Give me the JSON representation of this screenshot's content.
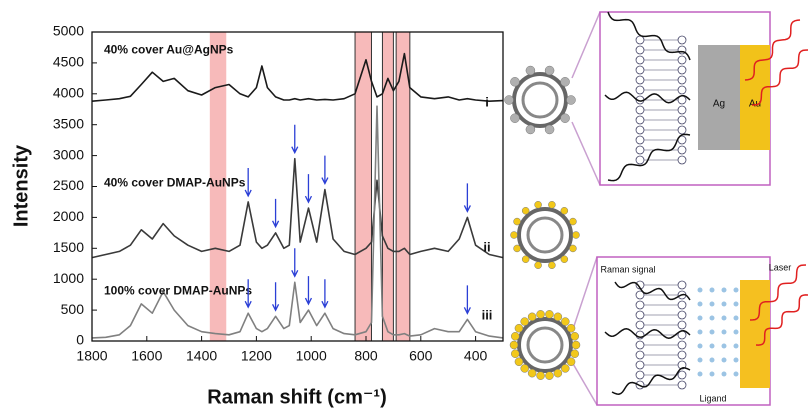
{
  "chart_data": {
    "type": "line",
    "ylabel": "Intensity",
    "xlabel": "Raman shift (cm⁻¹)",
    "xlim": [
      1800,
      300
    ],
    "xticks": [
      1800,
      1600,
      1400,
      1200,
      1000,
      800,
      600,
      400
    ],
    "ylim": [
      0,
      5000
    ],
    "yticks": [
      0,
      500,
      1000,
      1500,
      2000,
      2500,
      3000,
      3500,
      4000,
      4500,
      5000
    ],
    "x": [
      1800,
      1750,
      1700,
      1660,
      1620,
      1580,
      1540,
      1500,
      1450,
      1400,
      1350,
      1300,
      1260,
      1230,
      1200,
      1180,
      1160,
      1130,
      1100,
      1080,
      1060,
      1040,
      1010,
      980,
      950,
      920,
      880,
      840,
      800,
      780,
      760,
      740,
      720,
      700,
      680,
      660,
      640,
      600,
      550,
      500,
      460,
      430,
      400,
      350,
      300
    ],
    "series": [
      {
        "name": "40% cover Au@AgNPs",
        "tag": "i",
        "color": "#1a1a1a",
        "values": [
          3880,
          3900,
          3920,
          3960,
          4150,
          4350,
          4200,
          4250,
          4050,
          3980,
          4100,
          4150,
          4000,
          3950,
          4100,
          4450,
          4100,
          3950,
          3900,
          3900,
          3920,
          3900,
          3920,
          3900,
          3910,
          3900,
          3920,
          4000,
          4550,
          4200,
          3950,
          4000,
          4250,
          4050,
          4200,
          4650,
          4100,
          3950,
          3920,
          3950,
          3900,
          3920,
          3900,
          3880,
          3890
        ]
      },
      {
        "name": "40% cover DMAP-AuNPs",
        "tag": "ii",
        "color": "#3a3a3a",
        "values": [
          1350,
          1400,
          1450,
          1550,
          1800,
          1650,
          1900,
          1700,
          1550,
          1450,
          1500,
          1450,
          1550,
          2250,
          1600,
          1500,
          1550,
          1750,
          1500,
          1550,
          2950,
          1600,
          2150,
          1600,
          2450,
          1650,
          1450,
          1400,
          1500,
          1600,
          2600,
          1700,
          1500,
          1450,
          1450,
          1500,
          1400,
          1450,
          1500,
          1450,
          1650,
          2000,
          1550,
          1400,
          1350
        ]
      },
      {
        "name": "100% cover DMAP-AuNPs",
        "tag": "iii",
        "color": "#808080",
        "values": [
          50,
          60,
          100,
          250,
          600,
          450,
          800,
          500,
          250,
          150,
          120,
          100,
          150,
          450,
          200,
          150,
          200,
          400,
          200,
          250,
          950,
          300,
          500,
          250,
          450,
          200,
          120,
          100,
          150,
          300,
          3800,
          400,
          150,
          100,
          100,
          120,
          80,
          100,
          200,
          150,
          150,
          350,
          150,
          80,
          50
        ]
      }
    ],
    "highlight_bands": [
      [
        1370,
        1310
      ],
      [
        840,
        780
      ],
      [
        740,
        700
      ],
      [
        690,
        640
      ]
    ],
    "highlight_color": "#f4a3a3",
    "marked_peaks": [
      1230,
      1130,
      1060,
      1010,
      950,
      430
    ],
    "arrow_color": "#2b3fd6"
  },
  "diagram": {
    "top": {
      "labels": [
        "Ag",
        "Au"
      ]
    },
    "bottom": {
      "labels": [
        "Raman signal",
        "Laser",
        "Ligand"
      ]
    }
  }
}
